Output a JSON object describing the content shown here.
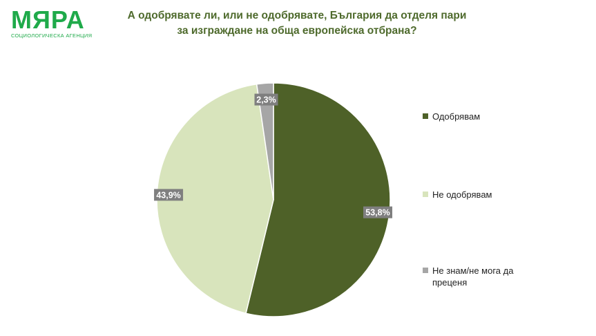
{
  "logo": {
    "word": "МЯРА",
    "subtitle": "СОЦИОЛОГИЧЕСКА АГЕНЦИЯ"
  },
  "chart_data": {
    "type": "pie",
    "title_lines": [
      "А одобрявате ли, или не одобрявате, България да отделя пари",
      "за изграждане на обща европейска отбрана?"
    ],
    "legend_position": "right",
    "slices": [
      {
        "label": "Одобрявам",
        "value": 53.8,
        "display": "53,8%",
        "color": "#4e6128"
      },
      {
        "label": "Не одобрявам",
        "value": 43.9,
        "display": "43,9%",
        "color": "#d8e4bc"
      },
      {
        "label": "Не знам/не мога да преценя",
        "value": 2.3,
        "display": "2,3%",
        "color": "#a6a6a6"
      }
    ]
  }
}
